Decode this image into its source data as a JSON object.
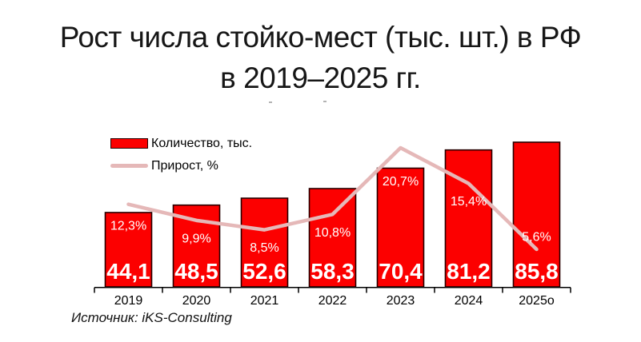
{
  "title": {
    "line1": "Рост числа стойко-мест (тыс. шт.) в РФ",
    "line2": "в 2019–2025 гг."
  },
  "legend": {
    "bars_label": "Количество, тыс.",
    "line_label": "Прирост, %"
  },
  "source": "Источник: iKS-Consulting",
  "colors": {
    "bar_fill": "#fc0000",
    "bar_border": "#260000",
    "line": "#e5b8b8",
    "label_on_bar": "#ffffff",
    "axis": "#000000",
    "title_text": "#161616"
  },
  "chart_data": {
    "type": "bar",
    "combo": "bar+line",
    "title": "Рост числа стойко-мест (тыс. шт.) в РФ в 2019–2025 гг.",
    "categories": [
      "2019",
      "2020",
      "2021",
      "2022",
      "2023",
      "2024",
      "2025о"
    ],
    "series": [
      {
        "name": "Количество, тыс.",
        "type": "bar",
        "values": [
          44.1,
          48.5,
          52.6,
          58.3,
          70.4,
          81.2,
          85.8
        ]
      },
      {
        "name": "Прирост, %",
        "type": "line",
        "values": [
          12.3,
          9.9,
          8.5,
          10.8,
          20.7,
          15.4,
          5.6
        ]
      }
    ],
    "value_label_format": "comma-decimal",
    "pct_label_format": "comma-decimal-percent",
    "xlabel": "",
    "ylabel": "",
    "bar_axis_min": 0,
    "pct_axis_min": 0,
    "grid": false,
    "axes_hidden": true,
    "legend_position": "top-left",
    "source": "Источник: iKS-Consulting"
  }
}
